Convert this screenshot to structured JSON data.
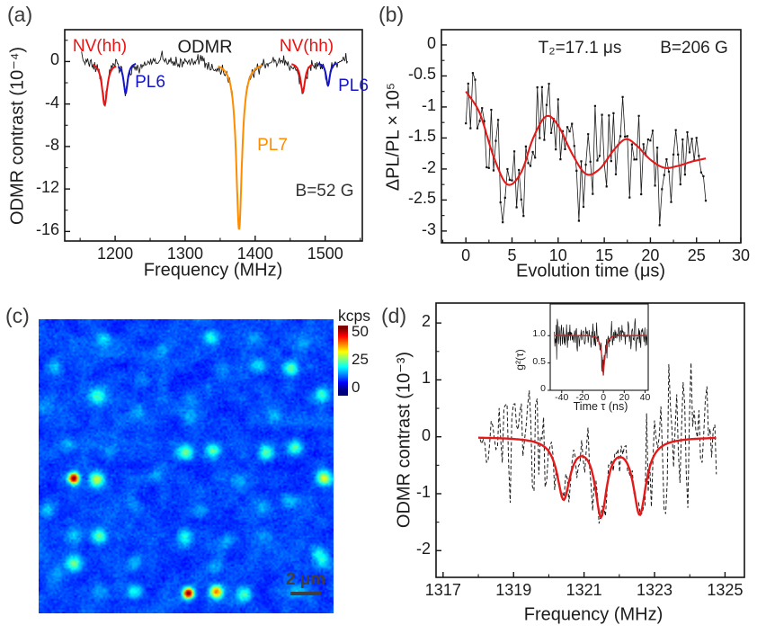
{
  "panels": {
    "a": {
      "label": "(a)"
    },
    "b": {
      "label": "(b)"
    },
    "c": {
      "label": "(c)"
    },
    "d": {
      "label": "(d)"
    }
  },
  "chart_data": [
    {
      "id": "a",
      "type": "line",
      "title": "ODMR",
      "xlabel": "Frequency (MHz)",
      "ylabel": "ODMR contrast (10⁻⁴)",
      "xlim": [
        1128,
        1553
      ],
      "xticks": [
        1200,
        1300,
        1400,
        1500
      ],
      "ylim": [
        -16.9,
        3.0
      ],
      "yticks": [
        0,
        -4,
        -8,
        -12,
        -16
      ],
      "annotations": [
        {
          "id": "nv-left",
          "text": "NV(hh)",
          "color": "#ee1111"
        },
        {
          "id": "nv-right",
          "text": "NV(hh)",
          "color": "#ee1111"
        },
        {
          "id": "pl6-left",
          "text": "PL6",
          "color": "#1414cc"
        },
        {
          "id": "pl6-right",
          "text": "PL6",
          "color": "#1414cc"
        },
        {
          "id": "pl7",
          "text": "PL7",
          "color": "#ff8c00"
        },
        {
          "id": "field",
          "text": "B=52 G",
          "color": "#333333"
        }
      ],
      "data_color": "#1a1a1a",
      "noise_sigma": 0.3,
      "data_range_MHz": [
        1152,
        1533
      ],
      "resonances": [
        {
          "name": "NV(hh)",
          "center_MHz": 1185,
          "depth": 4.05,
          "width_MHz": 4.5,
          "fit_color": "#ee1111",
          "fit_range": [
            1168,
            1202
          ]
        },
        {
          "name": "PL6",
          "center_MHz": 1215,
          "depth": 2.9,
          "width_MHz": 3.5,
          "fit_color": "#1414cc",
          "fit_range": [
            1204,
            1230
          ]
        },
        {
          "name": "PL7",
          "center_MHz": 1377,
          "depth": 15.8,
          "width_MHz": 5.0,
          "fit_color": "#ff8c00",
          "fit_range": [
            1347,
            1410
          ]
        },
        {
          "name": "NV(hh)",
          "center_MHz": 1468,
          "depth": 2.8,
          "width_MHz": 4.0,
          "fit_color": "#ee1111",
          "fit_range": [
            1452,
            1482
          ]
        },
        {
          "name": "PL6",
          "center_MHz": 1504,
          "depth": 2.2,
          "width_MHz": 3.2,
          "fit_color": "#1414cc",
          "fit_range": [
            1490,
            1517
          ]
        }
      ]
    },
    {
      "id": "b",
      "type": "scatter+line",
      "xlabel": "Evolution time (μs)",
      "ylabel": "ΔPL/PL × 10⁵",
      "xlim": [
        -2.65,
        29.8
      ],
      "xticks": [
        0,
        5,
        10,
        15,
        20,
        25,
        30
      ],
      "ylim": [
        -3.19,
        0.246
      ],
      "yticks": [
        0,
        -0.5,
        -1,
        -1.5,
        -2,
        -2.5,
        -3
      ],
      "annotations": [
        {
          "id": "t2",
          "text": "T₂=17.1 μs",
          "color": "#222222"
        },
        {
          "id": "field",
          "text": "B=206 G",
          "color": "#222222"
        }
      ],
      "fit_color": "#e31a1a",
      "data_color": "#1a1a1a",
      "noise_sigma": 0.42,
      "t_range_us": [
        0,
        26
      ],
      "n_points": 105,
      "fit_curve_points": [
        [
          0,
          -0.75
        ],
        [
          1.5,
          -1.1
        ],
        [
          3,
          -1.8
        ],
        [
          4.5,
          -2.25
        ],
        [
          6,
          -2.05
        ],
        [
          7.3,
          -1.5
        ],
        [
          8.7,
          -1.15
        ],
        [
          10,
          -1.3
        ],
        [
          11.5,
          -1.75
        ],
        [
          13,
          -2.08
        ],
        [
          14.5,
          -2.0
        ],
        [
          16,
          -1.7
        ],
        [
          17.3,
          -1.52
        ],
        [
          18.5,
          -1.62
        ],
        [
          20,
          -1.85
        ],
        [
          21.5,
          -1.98
        ],
        [
          23,
          -1.95
        ],
        [
          24.5,
          -1.88
        ],
        [
          26,
          -1.83
        ]
      ]
    },
    {
      "id": "c",
      "type": "heatmap",
      "colormap": "jet",
      "colorbar": {
        "title": "kcps",
        "ticks": [
          50,
          25,
          0
        ],
        "range": [
          0,
          50
        ]
      },
      "scalebar": {
        "label": "2 μm",
        "color": "#3f3f3f"
      },
      "background_kcps": 9,
      "spots": [
        {
          "x": 0.22,
          "y": 0.064,
          "kcps": 16
        },
        {
          "x": 0.584,
          "y": 0.059,
          "kcps": 20
        },
        {
          "x": 0.42,
          "y": 0.1,
          "kcps": 12
        },
        {
          "x": 0.73,
          "y": 0.065,
          "kcps": 13
        },
        {
          "x": 0.9,
          "y": 0.08,
          "kcps": 12
        },
        {
          "x": 0.053,
          "y": 0.16,
          "kcps": 15
        },
        {
          "x": 0.745,
          "y": 0.156,
          "kcps": 16
        },
        {
          "x": 0.86,
          "y": 0.166,
          "kcps": 22
        },
        {
          "x": 0.62,
          "y": 0.16,
          "kcps": 12
        },
        {
          "x": 0.35,
          "y": 0.21,
          "kcps": 12
        },
        {
          "x": 0.198,
          "y": 0.26,
          "kcps": 20
        },
        {
          "x": 0.515,
          "y": 0.268,
          "kcps": 13
        },
        {
          "x": 0.964,
          "y": 0.252,
          "kcps": 20
        },
        {
          "x": 0.8,
          "y": 0.33,
          "kcps": 13
        },
        {
          "x": 0.51,
          "y": 0.335,
          "kcps": 14
        },
        {
          "x": 0.329,
          "y": 0.313,
          "kcps": 13
        },
        {
          "x": 0.022,
          "y": 0.299,
          "kcps": 12
        },
        {
          "x": 0.1,
          "y": 0.425,
          "kcps": 13
        },
        {
          "x": 0.24,
          "y": 0.45,
          "kcps": 12
        },
        {
          "x": 0.499,
          "y": 0.452,
          "kcps": 24
        },
        {
          "x": 0.593,
          "y": 0.446,
          "kcps": 22
        },
        {
          "x": 0.774,
          "y": 0.452,
          "kcps": 21
        },
        {
          "x": 0.873,
          "y": 0.436,
          "kcps": 23
        },
        {
          "x": 0.117,
          "y": 0.541,
          "kcps": 52
        },
        {
          "x": 0.195,
          "y": 0.546,
          "kcps": 26
        },
        {
          "x": 0.971,
          "y": 0.541,
          "kcps": 27
        },
        {
          "x": 0.4,
          "y": 0.53,
          "kcps": 12
        },
        {
          "x": 0.68,
          "y": 0.55,
          "kcps": 12
        },
        {
          "x": 0.027,
          "y": 0.65,
          "kcps": 16
        },
        {
          "x": 0.322,
          "y": 0.638,
          "kcps": 12
        },
        {
          "x": 0.761,
          "y": 0.638,
          "kcps": 12
        },
        {
          "x": 0.85,
          "y": 0.62,
          "kcps": 13
        },
        {
          "x": 0.55,
          "y": 0.65,
          "kcps": 12
        },
        {
          "x": 0.205,
          "y": 0.74,
          "kcps": 22
        },
        {
          "x": 0.494,
          "y": 0.74,
          "kcps": 18
        },
        {
          "x": 0.642,
          "y": 0.755,
          "kcps": 14
        },
        {
          "x": 0.12,
          "y": 0.74,
          "kcps": 13
        },
        {
          "x": 0.77,
          "y": 0.74,
          "kcps": 12
        },
        {
          "x": 0.949,
          "y": 0.793,
          "kcps": 16
        },
        {
          "x": 0.117,
          "y": 0.832,
          "kcps": 22
        },
        {
          "x": 0.325,
          "y": 0.83,
          "kcps": 15
        },
        {
          "x": 0.966,
          "y": 0.823,
          "kcps": 17
        },
        {
          "x": 0.6,
          "y": 0.845,
          "kcps": 13
        },
        {
          "x": 0.06,
          "y": 0.87,
          "kcps": 12
        },
        {
          "x": 0.325,
          "y": 0.929,
          "kcps": 18
        },
        {
          "x": 0.508,
          "y": 0.934,
          "kcps": 50
        },
        {
          "x": 0.604,
          "y": 0.929,
          "kcps": 36
        },
        {
          "x": 0.697,
          "y": 0.939,
          "kcps": 22
        },
        {
          "x": 0.88,
          "y": 0.93,
          "kcps": 14
        },
        {
          "x": 0.21,
          "y": 0.93,
          "kcps": 13
        }
      ]
    },
    {
      "id": "d",
      "type": "line",
      "xlabel": "Frequency (MHz)",
      "ylabel": "ODMR contrast (10⁻³)",
      "xlim": [
        1316.8,
        1325.55
      ],
      "xticks": [
        1317,
        1319,
        1321,
        1323,
        1325
      ],
      "ylim": [
        -2.47,
        2.35
      ],
      "yticks": [
        2,
        1,
        0,
        -1,
        -2
      ],
      "fit_color": "#e31a1a",
      "data_color": "#1a1a1a",
      "data_range_MHz": [
        1318.05,
        1324.8
      ],
      "fit_range_MHz": [
        1318.0,
        1324.75
      ],
      "resonances": [
        {
          "center_MHz": 1320.42,
          "depth": 1.05,
          "width_MHz": 0.22
        },
        {
          "center_MHz": 1321.48,
          "depth": 1.32,
          "width_MHz": 0.2
        },
        {
          "center_MHz": 1322.58,
          "depth": 1.32,
          "width_MHz": 0.22
        }
      ],
      "inset": {
        "type": "line",
        "ylabel": "g²(τ)",
        "xlabel": "Time τ (ns)",
        "xlim": [
          -51,
          43
        ],
        "xticks": [
          -40,
          -20,
          0,
          20,
          40
        ],
        "ylim": [
          0,
          1.58
        ],
        "yticks": [
          "1.0",
          "0.5",
          "0"
        ],
        "dip": {
          "g2_at_zero": 0.27,
          "tau_ns": 2.3,
          "baseline": 1.0
        },
        "noise_sigma": 0.13,
        "tau_range_ns": [
          -47,
          47
        ],
        "fit_color": "#c22424",
        "data_color": "#111111"
      }
    }
  ]
}
